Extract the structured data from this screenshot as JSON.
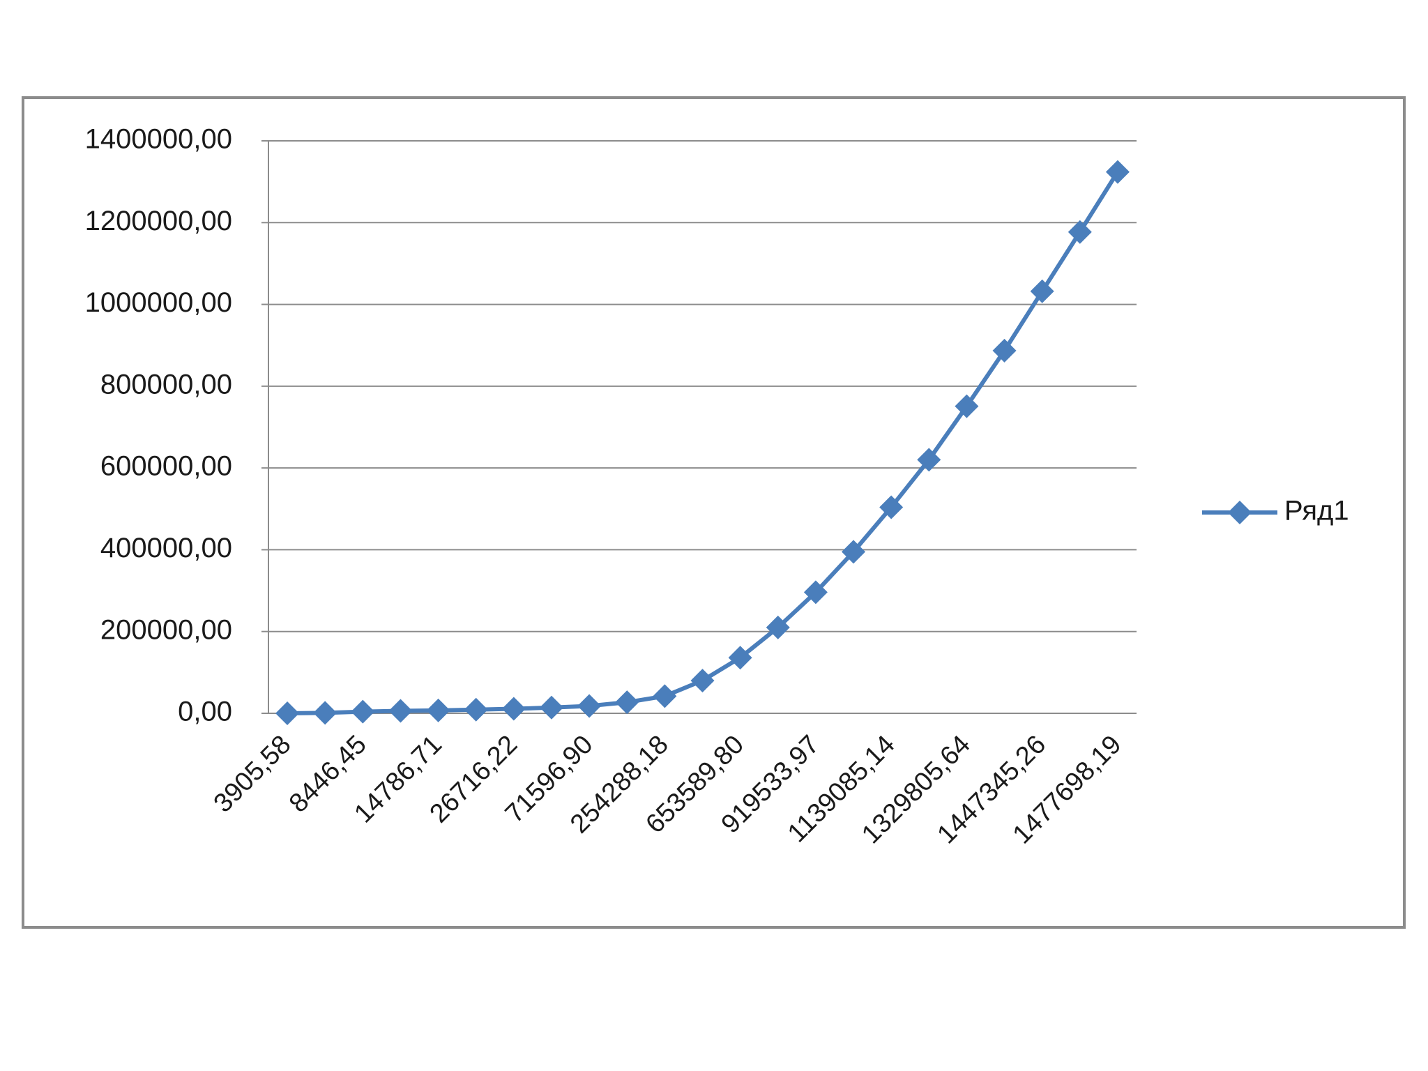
{
  "chart_data": {
    "type": "line",
    "categories": [
      "3905,58",
      null,
      "8446,45",
      null,
      "14786,71",
      null,
      "26716,22",
      null,
      "71596,90",
      null,
      "254288,18",
      null,
      "653589,80",
      null,
      "919533,97",
      null,
      "1139085,14",
      null,
      "1329805,64",
      null,
      "1447345,26",
      null,
      "1477698,19"
    ],
    "series": [
      {
        "name": "Ряд1",
        "color": "#4a7ebb",
        "values": [
          0,
          1000,
          4000,
          6000,
          7000,
          9000,
          11000,
          14000,
          18000,
          27000,
          42000,
          80000,
          136000,
          210000,
          296000,
          395000,
          504000,
          620000,
          751000,
          887000,
          1032000,
          1177000,
          1324000
        ]
      }
    ],
    "ylim": [
      0,
      1400000
    ],
    "yticks": [
      {
        "value": 0,
        "label": "0,00"
      },
      {
        "value": 200000,
        "label": "200000,00"
      },
      {
        "value": 400000,
        "label": "400000,00"
      },
      {
        "value": 600000,
        "label": "600000,00"
      },
      {
        "value": 800000,
        "label": "800000,00"
      },
      {
        "value": 1000000,
        "label": "1000000,00"
      },
      {
        "value": 1200000,
        "label": "1200000,00"
      },
      {
        "value": 1400000,
        "label": "1400000,00"
      }
    ],
    "grid": true,
    "legend": "right"
  }
}
